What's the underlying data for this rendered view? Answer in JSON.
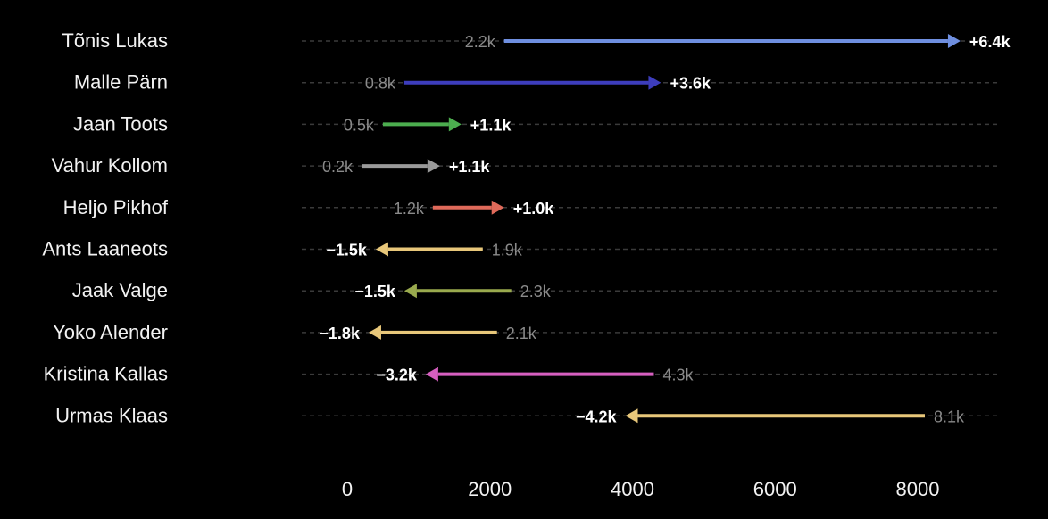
{
  "chart_data": {
    "type": "arrow",
    "title": "",
    "xlabel": "",
    "ylabel": "",
    "xlim": [
      -700,
      9800
    ],
    "xticks": [
      0,
      2000,
      4000,
      6000,
      8000
    ],
    "xtick_labels": [
      "0",
      "2000",
      "4000",
      "6000",
      "8000"
    ],
    "grid": "dashed horizontal guides per row",
    "rows": [
      {
        "name": "Tõnis Lukas",
        "start": 2200,
        "end": 8600,
        "start_label": "2.2k",
        "delta_label": "+6.4k",
        "color": "#6f8fe0"
      },
      {
        "name": "Malle Pärn",
        "start": 800,
        "end": 4400,
        "start_label": "0.8k",
        "delta_label": "+3.6k",
        "color": "#3d3dbd"
      },
      {
        "name": "Jaan Toots",
        "start": 500,
        "end": 1600,
        "start_label": "0.5k",
        "delta_label": "+1.1k",
        "color": "#4cae4f"
      },
      {
        "name": "Vahur Kollom",
        "start": 200,
        "end": 1300,
        "start_label": "0.2k",
        "delta_label": "+1.1k",
        "color": "#9a9a9a"
      },
      {
        "name": "Heljo Pikhof",
        "start": 1200,
        "end": 2200,
        "start_label": "1.2k",
        "delta_label": "+1.0k",
        "color": "#e06a5a"
      },
      {
        "name": "Ants Laaneots",
        "start": 1900,
        "end": 400,
        "start_label": "1.9k",
        "delta_label": "−1.5k",
        "color": "#e8c77a"
      },
      {
        "name": "Jaak Valge",
        "start": 2300,
        "end": 800,
        "start_label": "2.3k",
        "delta_label": "−1.5k",
        "color": "#9aaa4e"
      },
      {
        "name": "Yoko Alender",
        "start": 2100,
        "end": 300,
        "start_label": "2.1k",
        "delta_label": "−1.8k",
        "color": "#e8c77a"
      },
      {
        "name": "Kristina Kallas",
        "start": 4300,
        "end": 1100,
        "start_label": "4.3k",
        "delta_label": "−3.2k",
        "color": "#d65fc0"
      },
      {
        "name": "Urmas Klaas",
        "start": 8100,
        "end": 3900,
        "start_label": "8.1k",
        "delta_label": "−4.2k",
        "color": "#e8c77a"
      }
    ]
  }
}
